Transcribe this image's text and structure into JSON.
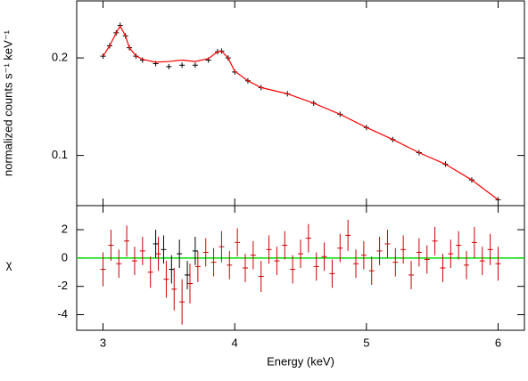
{
  "chart_data": [
    {
      "type": "line",
      "ylabel": "normalized counts s⁻¹ keV⁻¹",
      "x": [
        3.0,
        3.05,
        3.1,
        3.13,
        3.17,
        3.2,
        3.25,
        3.3,
        3.4,
        3.5,
        3.6,
        3.7,
        3.8,
        3.87,
        3.9,
        3.95,
        4.0,
        4.1,
        4.2,
        4.4,
        4.6,
        4.8,
        5.0,
        5.2,
        5.4,
        5.6,
        5.8,
        6.0
      ],
      "series": [
        {
          "color": "#000000",
          "marker": "cross",
          "values": [
            0.2025,
            0.218,
            0.239,
            0.252,
            0.234,
            0.215,
            0.2025,
            0.197,
            0.192,
            0.188,
            0.19,
            0.19,
            0.197,
            0.209,
            0.21,
            0.2,
            0.181,
            0.17,
            0.162,
            0.155,
            0.145,
            0.134,
            0.122,
            0.112,
            0.102,
            0.094,
            0.084,
            0.073
          ]
        },
        {
          "color": "#ff0000",
          "values": [
            0.2025,
            0.218,
            0.239,
            0.251,
            0.234,
            0.215,
            0.203,
            0.198,
            0.194,
            0.195,
            0.197,
            0.195,
            0.199,
            0.209,
            0.21,
            0.2,
            0.182,
            0.17,
            0.162,
            0.155,
            0.145,
            0.134,
            0.122,
            0.112,
            0.102,
            0.094,
            0.084,
            0.073
          ]
        }
      ],
      "log_y": true,
      "ylim": [
        0.07,
        0.3
      ],
      "yticks": [
        0.1,
        0.2
      ],
      "xlim": [
        2.8,
        6.2
      ],
      "xticks": [
        3,
        4,
        5,
        6
      ]
    },
    {
      "type": "errorbar",
      "ylabel": "χ",
      "xlabel": "Energy (keV)",
      "series": [
        {
          "color": "#cc0000",
          "x": [
            3.0,
            3.06,
            3.12,
            3.18,
            3.24,
            3.3,
            3.36,
            3.42,
            3.48,
            3.54,
            3.6,
            3.66,
            3.72,
            3.78,
            3.84,
            3.9,
            3.96,
            4.02,
            4.08,
            4.14,
            4.2,
            4.26,
            4.32,
            4.38,
            4.44,
            4.5,
            4.56,
            4.62,
            4.68,
            4.74,
            4.8,
            4.86,
            4.92,
            4.98,
            5.04,
            5.1,
            5.16,
            5.22,
            5.28,
            5.34,
            5.4,
            5.46,
            5.52,
            5.58,
            5.64,
            5.7,
            5.76,
            5.82,
            5.88,
            5.94,
            6.0
          ],
          "values": [
            -0.8,
            0.9,
            -0.4,
            1.2,
            -0.2,
            0.5,
            -1.0,
            0.3,
            -1.5,
            -2.2,
            -3.1,
            -1.8,
            -0.6,
            0.4,
            -0.3,
            0.8,
            -0.5,
            1.1,
            -0.7,
            0.2,
            -1.3,
            0.6,
            -0.2,
            0.9,
            -0.8,
            0.3,
            1.4,
            -0.6,
            0.1,
            -1.1,
            0.7,
            1.6,
            -0.4,
            0.2,
            -0.9,
            0.5,
            1.0,
            -0.3,
            0.6,
            -1.2,
            0.4,
            -0.1,
            1.2,
            -0.7,
            0.3,
            0.9,
            -0.5,
            1.1,
            -0.2,
            0.6,
            -0.4
          ],
          "errors": [
            1.2,
            1.1,
            1.0,
            1.1,
            1.0,
            1.0,
            1.1,
            1.2,
            1.3,
            1.5,
            1.6,
            1.4,
            1.1,
            1.0,
            1.0,
            1.1,
            1.0,
            1.0,
            1.0,
            1.0,
            1.1,
            1.0,
            1.0,
            1.0,
            1.0,
            1.0,
            1.0,
            1.0,
            1.0,
            1.0,
            1.0,
            1.1,
            1.0,
            1.0,
            1.0,
            1.0,
            1.0,
            1.0,
            1.0,
            1.0,
            1.0,
            1.0,
            1.0,
            1.0,
            1.0,
            1.0,
            1.0,
            1.1,
            1.0,
            1.1,
            1.2
          ]
        },
        {
          "color": "#000000",
          "x": [
            3.4,
            3.46,
            3.52,
            3.58,
            3.64,
            3.7
          ],
          "values": [
            1.0,
            0.6,
            -0.8,
            0.3,
            -1.2,
            0.5
          ],
          "errors": [
            1.0,
            1.0,
            1.0,
            1.0,
            1.0,
            1.0
          ]
        }
      ],
      "reference_line": {
        "value": 0,
        "color": "#00dd00"
      },
      "ylim": [
        -5.1,
        3.7
      ],
      "yticks": [
        -4,
        -2,
        0,
        2
      ],
      "xlim": [
        2.8,
        6.2
      ],
      "xticks": [
        3,
        4,
        5,
        6
      ]
    }
  ]
}
